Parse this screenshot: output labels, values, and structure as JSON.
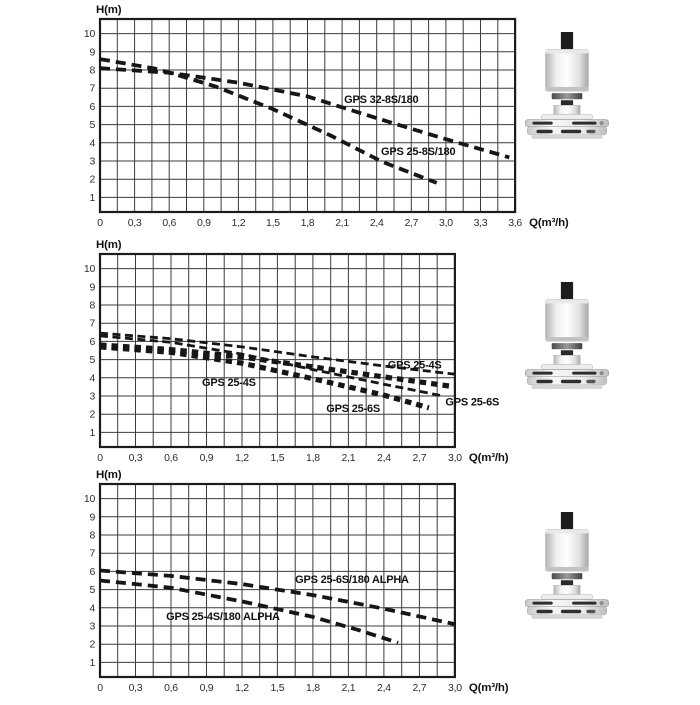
{
  "page": {
    "background": "#ffffff",
    "description_colors": {
      "grid_line": "#3c3c3c",
      "plot_border": "#1c1c1c",
      "curve": "#161616",
      "axis_text": "#2e2e2e"
    }
  },
  "icons": {
    "pump_photo": "circulator-pump-product-photo"
  },
  "chart_data": [
    {
      "type": "line",
      "title": "",
      "ylabel": "H(m)",
      "xlabel": "Q(m³/h)",
      "xlim": [
        0,
        3.6
      ],
      "ylim": [
        0.2,
        10.8
      ],
      "x_grid_step": 0.15,
      "grid": true,
      "legend_position": "labels-on-curves",
      "y_ticks": [
        1,
        2,
        3,
        4,
        5,
        6,
        7,
        8,
        9,
        10
      ],
      "x_tick_values": [
        0,
        0.3,
        0.6,
        0.9,
        1.2,
        1.5,
        1.8,
        2.1,
        2.4,
        2.7,
        3.0,
        3.3,
        3.6
      ],
      "x_tick_labels": [
        "0",
        "0,3",
        "0,6",
        "0,9",
        "1,2",
        "1,5",
        "1,8",
        "2,1",
        "2,4",
        "2,7",
        "3,0",
        "3,3",
        "3,6"
      ],
      "series": [
        {
          "name": "GPS 32-8S/180",
          "weight": "medium",
          "points": [
            [
              0,
              8.1
            ],
            [
              0.6,
              7.85
            ],
            [
              1.2,
              7.3
            ],
            [
              1.8,
              6.55
            ],
            [
              2.4,
              5.35
            ],
            [
              3.0,
              4.2
            ],
            [
              3.55,
              3.2
            ]
          ],
          "label": {
            "x": 2.44,
            "y": 6.4,
            "anchor": "middle"
          }
        },
        {
          "name": "GPS 25-8S/180",
          "weight": "medium",
          "points": [
            [
              0,
              8.6
            ],
            [
              0.5,
              8.05
            ],
            [
              1.0,
              7.1
            ],
            [
              1.5,
              5.85
            ],
            [
              2.0,
              4.4
            ],
            [
              2.45,
              2.95
            ],
            [
              2.92,
              1.8
            ]
          ],
          "label": {
            "x": 2.76,
            "y": 3.55,
            "anchor": "middle"
          }
        }
      ]
    },
    {
      "type": "line",
      "title": "",
      "ylabel": "H(m)",
      "xlabel": "Q(m³/h)",
      "xlim": [
        0,
        3.0
      ],
      "ylim": [
        0.2,
        10.8
      ],
      "x_grid_step": 0.15,
      "grid": true,
      "legend_position": "labels-on-curves",
      "y_ticks": [
        1,
        2,
        3,
        4,
        5,
        6,
        7,
        8,
        9,
        10
      ],
      "x_tick_values": [
        0,
        0.3,
        0.6,
        0.9,
        1.2,
        1.5,
        1.8,
        2.1,
        2.4,
        2.7,
        3.0
      ],
      "x_tick_labels": [
        "0",
        "0,3",
        "0,6",
        "0,9",
        "1,2",
        "1,5",
        "1,8",
        "2,1",
        "2,4",
        "2,7",
        "3,0"
      ],
      "series": [
        {
          "name": "GPS 25-4S",
          "weight": "thin",
          "points": [
            [
              0,
              6.45
            ],
            [
              0.6,
              6.15
            ],
            [
              1.2,
              5.7
            ],
            [
              1.8,
              5.15
            ],
            [
              2.4,
              4.65
            ],
            [
              3.0,
              4.2
            ]
          ],
          "label": {
            "x": 2.66,
            "y": 4.72,
            "anchor": "middle"
          }
        },
        {
          "name": "GPS 25-4S",
          "weight": "thick",
          "points": [
            [
              0,
              5.8
            ],
            [
              0.6,
              5.55
            ],
            [
              1.2,
              5.15
            ],
            [
              1.8,
              4.6
            ],
            [
              2.4,
              4.05
            ],
            [
              2.95,
              3.55
            ]
          ],
          "label": {
            "x": 1.09,
            "y": 3.77,
            "anchor": "middle"
          }
        },
        {
          "name": "GPS 25-6S",
          "weight": "thin",
          "points": [
            [
              0,
              6.3
            ],
            [
              0.6,
              5.95
            ],
            [
              1.2,
              5.3
            ],
            [
              1.8,
              4.45
            ],
            [
              2.4,
              3.65
            ],
            [
              2.9,
              3.0
            ]
          ],
          "label": {
            "x": 2.92,
            "y": 2.7,
            "anchor": "start"
          }
        },
        {
          "name": "GPS 25-6S",
          "weight": "thick",
          "points": [
            [
              0,
              5.7
            ],
            [
              0.6,
              5.4
            ],
            [
              1.2,
              4.8
            ],
            [
              1.8,
              3.95
            ],
            [
              2.4,
              3.05
            ],
            [
              2.78,
              2.35
            ]
          ],
          "label": {
            "x": 2.14,
            "y": 2.35,
            "anchor": "middle"
          }
        }
      ]
    },
    {
      "type": "line",
      "title": "",
      "ylabel": "H(m)",
      "xlabel": "Q(m³/h)",
      "xlim": [
        0,
        3.0
      ],
      "ylim": [
        0.2,
        10.8
      ],
      "x_grid_step": 0.15,
      "grid": true,
      "legend_position": "labels-on-curves",
      "y_ticks": [
        1,
        2,
        3,
        4,
        5,
        6,
        7,
        8,
        9,
        10
      ],
      "x_tick_values": [
        0,
        0.3,
        0.6,
        0.9,
        1.2,
        1.5,
        1.8,
        2.1,
        2.4,
        2.7,
        3.0
      ],
      "x_tick_labels": [
        "0",
        "0,3",
        "0,6",
        "0,9",
        "1,2",
        "1,5",
        "1,8",
        "2,1",
        "2,4",
        "2,7",
        "3,0"
      ],
      "series": [
        {
          "name": "GPS 25-6S/180 ALPHA",
          "weight": "medium",
          "points": [
            [
              0,
              6.05
            ],
            [
              0.6,
              5.75
            ],
            [
              1.2,
              5.3
            ],
            [
              1.8,
              4.7
            ],
            [
              2.4,
              3.95
            ],
            [
              3.0,
              3.1
            ]
          ],
          "label": {
            "x": 2.13,
            "y": 5.58,
            "anchor": "middle"
          }
        },
        {
          "name": "GPS 25-4S/180 ALPHA",
          "weight": "medium",
          "points": [
            [
              0,
              5.5
            ],
            [
              0.6,
              5.1
            ],
            [
              1.2,
              4.35
            ],
            [
              1.8,
              3.5
            ],
            [
              2.2,
              2.75
            ],
            [
              2.52,
              2.08
            ]
          ],
          "label": {
            "x": 1.04,
            "y": 3.55,
            "anchor": "middle"
          }
        }
      ]
    }
  ]
}
